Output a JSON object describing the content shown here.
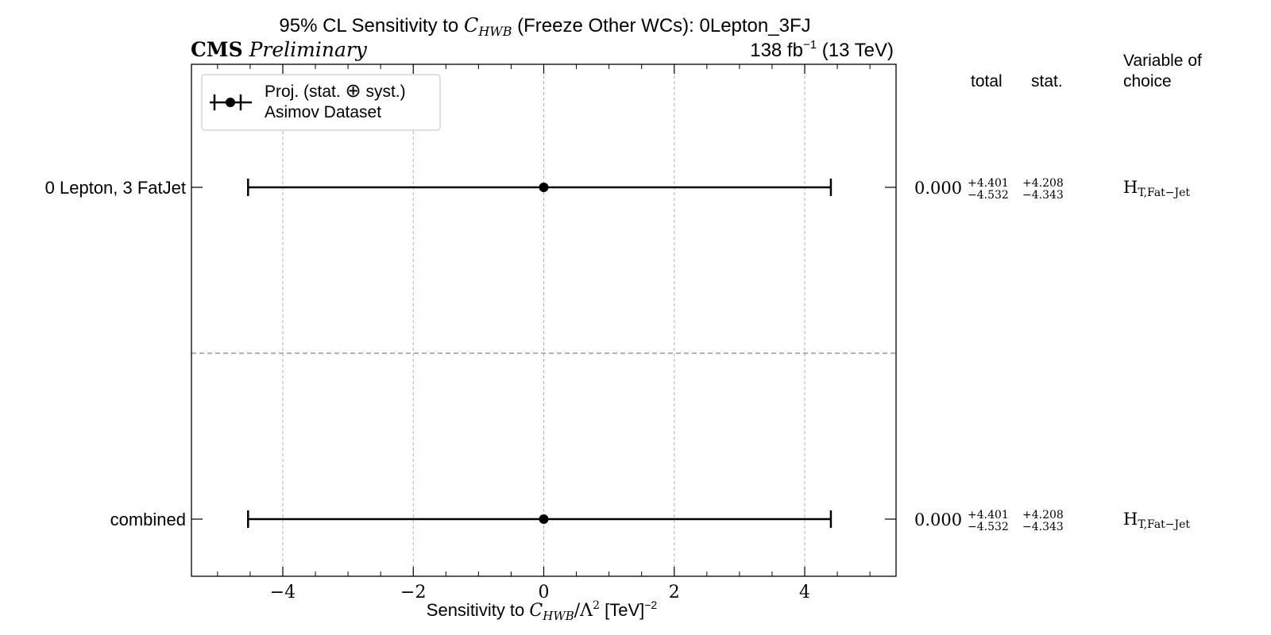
{
  "chart_data": {
    "type": "scatter",
    "title": {
      "prefix": "95% CL Sensitivity to ",
      "wc_symbol": "C",
      "wc_subscript": "HWB",
      "suffix": " (Freeze Other WCs): 0Lepton_3FJ"
    },
    "experiment_label": "CMS",
    "status_label": "Preliminary",
    "luminosity_label": {
      "value": "138 fb",
      "exponent": "−1",
      "energy": " (13 TeV)"
    },
    "xlabel": {
      "prefix": "Sensitivity to ",
      "wc_symbol": "C",
      "wc_subscript": "HWB",
      "scale": "/Λ",
      "scale_exponent": "2",
      "unit": " [TeV]",
      "unit_exponent": "−2"
    },
    "xlim": [
      -5.4,
      5.4
    ],
    "xticks": [
      {
        "value": -4,
        "label": "−4"
      },
      {
        "value": -2,
        "label": "−2"
      },
      {
        "value": 0,
        "label": "0"
      },
      {
        "value": 2,
        "label": "2"
      },
      {
        "value": 4,
        "label": "4"
      }
    ],
    "minor_tick_step": 0.5,
    "grid": "x-major-dashed",
    "legend": {
      "placement": "top-left",
      "line1_prefix": "Proj. (stat. ",
      "oplus": "⊕",
      "line1_suffix": " syst.)",
      "line2": "Asimov Dataset"
    },
    "table_headers": {
      "total": "total",
      "stat": "stat.",
      "variable_line1": "Variable of",
      "variable_line2": "choice"
    },
    "rows": [
      {
        "label": "0 Lepton, 3 FatJet",
        "center": 0.0,
        "total_up": 4.401,
        "total_down": -4.532,
        "center_text": "0.000",
        "total_up_text": "+4.401",
        "total_down_text": "−4.532",
        "stat_up_text": "+4.208",
        "stat_down_text": "−4.343",
        "variable": "H",
        "variable_subscript": "T,Fat−Jet"
      },
      {
        "label": "combined",
        "center": 0.0,
        "total_up": 4.401,
        "total_down": -4.532,
        "center_text": "0.000",
        "total_up_text": "+4.401",
        "total_down_text": "−4.532",
        "stat_up_text": "+4.208",
        "stat_down_text": "−4.343",
        "variable": "H",
        "variable_subscript": "T,Fat−Jet"
      }
    ],
    "colors": {
      "marker": "#000000",
      "grid": "#b0b0b0",
      "separator": "#999999",
      "frame": "#000000"
    }
  }
}
